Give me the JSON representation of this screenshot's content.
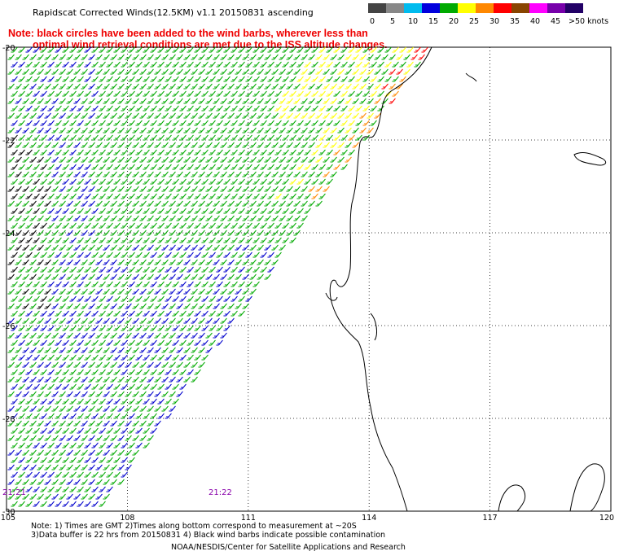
{
  "header": {
    "title": "Rapidscat Corrected Winds(12.5KM) v1.1 20150831 ascending",
    "note_line1": "Note: black circles have been added to the wind barbs, wherever less than",
    "note_line2": "optimal wind retrieval conditions are met due to the ISS altitude changes."
  },
  "legend": {
    "ticks": [
      "0",
      "5",
      "10",
      "15",
      "20",
      "25",
      "30",
      "35",
      "40",
      "45",
      ">50 knots"
    ],
    "colors": [
      "#444444",
      "#888888",
      "#00bbee",
      "#0000dd",
      "#00aa00",
      "#ffff00",
      "#ff8800",
      "#ff0000",
      "#884400",
      "#ff00ff",
      "#7700aa",
      "#220066"
    ]
  },
  "map": {
    "lat_labels": [
      "-20",
      "-22",
      "-24",
      "-26",
      "-28",
      "-30"
    ],
    "lon_labels": [
      "105",
      "108",
      "111",
      "114",
      "117",
      "120"
    ],
    "swath_times": [
      "21:21",
      "21:22"
    ],
    "barb_colors": {
      "low": "#0000cc",
      "mid": "#00aa00",
      "high": "#ffff00",
      "strong": "#ff8800",
      "very_strong": "#ff0000",
      "storm": "#cc00cc",
      "contaminated": "#000000"
    },
    "coastline_color": "#000000",
    "grid_color": "#000000"
  },
  "footer": {
    "line1": "Note: 1) Times are GMT 2)Times along bottom correspond to measurement at ~20S",
    "line2": "3)Data buffer is 22 hrs from 20150831 4) Black wind barbs indicate possible contamination",
    "line3": "NOAA/NESDIS/Center for Satellite Applications and Research"
  }
}
